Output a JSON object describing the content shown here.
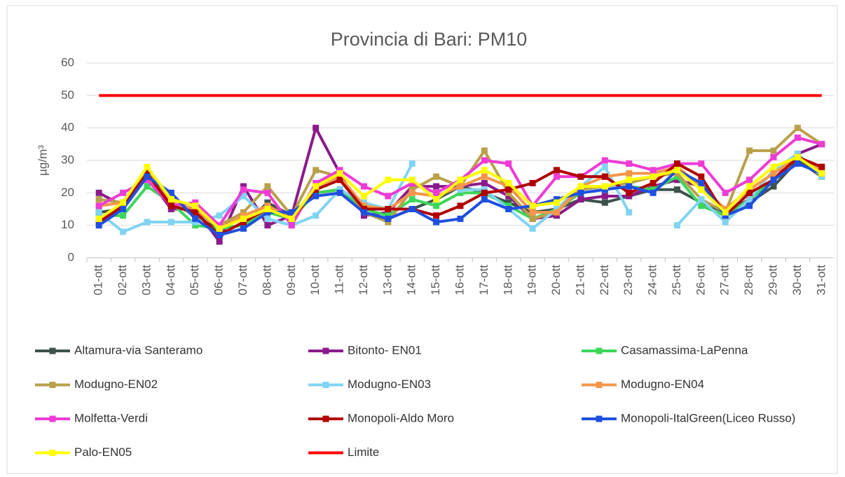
{
  "chart_data": {
    "type": "line",
    "title": "Provincia di Bari: PM10",
    "y_label": "µg/m³",
    "categories": [
      "01-ott",
      "02-ott",
      "03-ott",
      "04-ott",
      "05-ott",
      "06-ott",
      "07-ott",
      "08-ott",
      "09-ott",
      "10-ott",
      "11-ott",
      "12-ott",
      "13-ott",
      "14-ott",
      "15-ott",
      "16-ott",
      "17-ott",
      "18-ott",
      "19-ott",
      "20-ott",
      "21-ott",
      "22-ott",
      "23-ott",
      "24-ott",
      "25-ott",
      "26-ott",
      "27-ott",
      "28-ott",
      "29-ott",
      "30-ott",
      "31-ott"
    ],
    "ylim": [
      0,
      60
    ],
    "yticks": [
      0,
      10,
      20,
      30,
      40,
      50,
      60
    ],
    "grid": true,
    "legend": "bottom",
    "series": [
      {
        "name": "Altamura-via Santeramo",
        "color": "#3d524c",
        "markers": true,
        "values": [
          14,
          15,
          26,
          17,
          13,
          9,
          10,
          17,
          13,
          20,
          21,
          14,
          12,
          15,
          18,
          22,
          20,
          17,
          14,
          15,
          18,
          17,
          19,
          21,
          21,
          17,
          14,
          17,
          22,
          30,
          25
        ]
      },
      {
        "name": "Bitonto- EN01",
        "color": "#8b1a8b",
        "markers": true,
        "values": [
          20,
          16,
          25,
          15,
          15,
          5,
          22,
          10,
          13,
          40,
          26,
          13,
          14,
          22,
          22,
          22,
          23,
          19,
          12,
          13,
          18,
          19,
          19,
          22,
          24,
          22,
          14,
          18,
          24,
          32,
          35
        ]
      },
      {
        "name": "Casamassima-LaPenna",
        "color": "#3cd65a",
        "markers": true,
        "values": [
          13,
          13,
          22,
          17,
          10,
          9,
          10,
          14,
          12,
          20,
          21,
          15,
          13,
          18,
          16,
          20,
          20,
          16,
          12,
          15,
          20,
          21,
          22,
          21,
          25,
          16,
          13,
          18,
          24,
          31,
          26
        ]
      },
      {
        "name": "Modugno-EN02",
        "color": "#b9a04a",
        "markers": true,
        "values": [
          18,
          17,
          27,
          17,
          13,
          10,
          14,
          22,
          13,
          27,
          25,
          14,
          11,
          21,
          25,
          22,
          33,
          20,
          12,
          14,
          21,
          22,
          23,
          25,
          26,
          18,
          14,
          33,
          33,
          40,
          35
        ]
      },
      {
        "name": "Modugno-EN03",
        "color": "#80d4f2",
        "markers": true,
        "values": [
          14,
          8,
          11,
          11,
          11,
          13,
          19,
          12,
          10,
          13,
          21,
          17,
          15,
          29,
          null,
          21,
          21,
          15,
          9,
          15,
          22,
          28,
          14,
          null,
          10,
          18,
          11,
          18,
          27,
          32,
          25
        ]
      },
      {
        "name": "Modugno-EN04",
        "color": "#f4964a",
        "markers": true,
        "values": [
          16,
          17,
          25,
          17,
          15,
          9,
          13,
          16,
          12,
          22,
          25,
          16,
          15,
          20,
          19,
          22,
          25,
          22,
          14,
          14,
          22,
          25,
          26,
          26,
          28,
          22,
          15,
          21,
          26,
          31,
          27
        ]
      },
      {
        "name": "Molfetta-Verdi",
        "color": "#ee3bd6",
        "markers": true,
        "values": [
          16,
          20,
          24,
          16,
          17,
          10,
          21,
          20,
          10,
          23,
          27,
          22,
          19,
          23,
          20,
          24,
          30,
          29,
          16,
          25,
          25,
          30,
          29,
          27,
          29,
          29,
          20,
          24,
          31,
          37,
          35
        ]
      },
      {
        "name": "Monopoli-Aldo Moro",
        "color": "#b00000",
        "markers": true,
        "values": [
          11,
          16,
          26,
          16,
          14,
          7,
          11,
          15,
          12,
          21,
          24,
          15,
          15,
          15,
          13,
          16,
          20,
          21,
          23,
          27,
          25,
          25,
          20,
          23,
          29,
          25,
          13,
          20,
          24,
          31,
          28
        ]
      },
      {
        "name": "Monopoli-ItalGreen(Liceo Russo)",
        "color": "#1f4fe0",
        "markers": true,
        "values": [
          10,
          15,
          25,
          20,
          12,
          7,
          9,
          14,
          14,
          19,
          20,
          14,
          12,
          15,
          11,
          12,
          18,
          15,
          16,
          18,
          20,
          21,
          22,
          20,
          27,
          23,
          13,
          16,
          24,
          29,
          26
        ]
      },
      {
        "name": "Palo-EN05",
        "color": "#ffff00",
        "markers": true,
        "values": [
          12,
          17,
          28,
          18,
          16,
          9,
          12,
          15,
          12,
          22,
          26,
          19,
          24,
          24,
          18,
          24,
          27,
          23,
          16,
          17,
          22,
          22,
          24,
          25,
          27,
          21,
          14,
          22,
          28,
          31,
          26
        ]
      },
      {
        "name": "Limite",
        "color": "#ff0000",
        "markers": false,
        "values": [
          50,
          50,
          50,
          50,
          50,
          50,
          50,
          50,
          50,
          50,
          50,
          50,
          50,
          50,
          50,
          50,
          50,
          50,
          50,
          50,
          50,
          50,
          50,
          50,
          50,
          50,
          50,
          50,
          50,
          50,
          50
        ]
      }
    ]
  }
}
